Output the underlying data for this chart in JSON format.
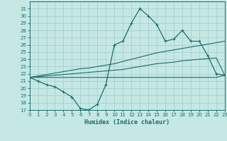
{
  "xlabel": "Humidex (Indice chaleur)",
  "bg_color": "#c5e8e5",
  "line_color": "#1a6b6b",
  "grid_color": "#a8d0cc",
  "x_data": [
    0,
    1,
    2,
    3,
    4,
    5,
    6,
    7,
    8,
    9,
    10,
    11,
    12,
    13,
    14,
    15,
    16,
    17,
    18,
    19,
    20,
    21,
    22,
    23
  ],
  "y_main": [
    21.5,
    21.0,
    20.5,
    20.2,
    19.5,
    18.8,
    17.2,
    17.0,
    17.8,
    20.5,
    26.0,
    26.5,
    29.0,
    31.0,
    30.0,
    28.8,
    26.5,
    26.8,
    28.0,
    26.5,
    26.5,
    24.5,
    22.0,
    21.8
  ],
  "y_diag_upper": [
    21.5,
    21.7,
    21.9,
    22.1,
    22.3,
    22.5,
    22.7,
    22.8,
    23.0,
    23.2,
    23.4,
    23.7,
    24.0,
    24.3,
    24.6,
    24.9,
    25.1,
    25.3,
    25.5,
    25.7,
    25.9,
    26.1,
    26.3,
    26.5
  ],
  "y_diag_lower": [
    21.5,
    21.6,
    21.7,
    21.8,
    21.9,
    22.0,
    22.1,
    22.2,
    22.3,
    22.4,
    22.5,
    22.6,
    22.8,
    23.0,
    23.2,
    23.4,
    23.5,
    23.6,
    23.8,
    23.9,
    24.0,
    24.1,
    24.2,
    21.8
  ],
  "y_flat": [
    21.5,
    21.5,
    21.5,
    21.5,
    21.5,
    21.5,
    21.5,
    21.5,
    21.5,
    21.5,
    21.5,
    21.5,
    21.5,
    21.5,
    21.5,
    21.5,
    21.5,
    21.5,
    21.5,
    21.5,
    21.5,
    21.5,
    21.5,
    21.8
  ],
  "xlim": [
    0,
    23
  ],
  "ylim": [
    17,
    32
  ],
  "yticks": [
    17,
    18,
    19,
    20,
    21,
    22,
    23,
    24,
    25,
    26,
    27,
    28,
    29,
    30,
    31
  ],
  "xticks": [
    0,
    1,
    2,
    3,
    4,
    5,
    6,
    7,
    8,
    9,
    10,
    11,
    12,
    13,
    14,
    15,
    16,
    17,
    18,
    19,
    20,
    21,
    22,
    23
  ]
}
